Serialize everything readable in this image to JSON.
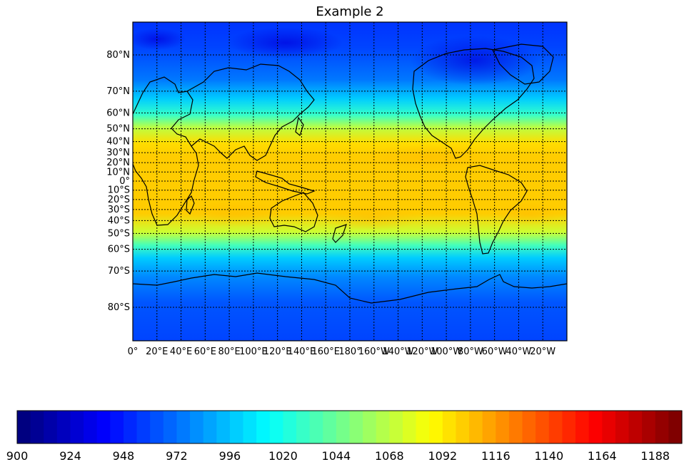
{
  "map": {
    "title": "Example 2",
    "projection": "cylindrical",
    "lat_labels": [
      {
        "lat": 80,
        "label": "80°N"
      },
      {
        "lat": 70,
        "label": "70°N"
      },
      {
        "lat": 60,
        "label": "60°N"
      },
      {
        "lat": 50,
        "label": "50°N"
      },
      {
        "lat": 40,
        "label": "40°N"
      },
      {
        "lat": 30,
        "label": "30°N"
      },
      {
        "lat": 20,
        "label": "20°N"
      },
      {
        "lat": 10,
        "label": "10°N"
      },
      {
        "lat": 0,
        "label": "0°"
      },
      {
        "lat": -10,
        "label": "10°S"
      },
      {
        "lat": -20,
        "label": "20°S"
      },
      {
        "lat": -30,
        "label": "30°S"
      },
      {
        "lat": -40,
        "label": "40°S"
      },
      {
        "lat": -50,
        "label": "50°S"
      },
      {
        "lat": -60,
        "label": "60°S"
      },
      {
        "lat": -70,
        "label": "70°S"
      },
      {
        "lat": -80,
        "label": "80°S"
      }
    ],
    "lon_labels": [
      {
        "lon": 0,
        "label": "0°"
      },
      {
        "lon": 20,
        "label": "20°E"
      },
      {
        "lon": 40,
        "label": "40°E"
      },
      {
        "lon": 60,
        "label": "60°E"
      },
      {
        "lon": 80,
        "label": "80°E"
      },
      {
        "lon": 100,
        "label": "100°E"
      },
      {
        "lon": 120,
        "label": "120°E"
      },
      {
        "lon": 140,
        "label": "140°E"
      },
      {
        "lon": 160,
        "label": "160°E"
      },
      {
        "lon": 180,
        "label": "180°"
      },
      {
        "lon": 200,
        "label": "160°W"
      },
      {
        "lon": 220,
        "label": "140°W"
      },
      {
        "lon": 240,
        "label": "120°W"
      },
      {
        "lon": 260,
        "label": "100°W"
      },
      {
        "lon": 280,
        "label": "80°W"
      },
      {
        "lon": 300,
        "label": "60°W"
      },
      {
        "lon": 320,
        "label": "40°W"
      },
      {
        "lon": 340,
        "label": "20°W"
      }
    ],
    "colorbar": {
      "min": 900,
      "max": 1200,
      "levels": 50,
      "tick_values": [
        900,
        924,
        948,
        972,
        996,
        1020,
        1044,
        1068,
        1092,
        1116,
        1140,
        1164,
        1188
      ],
      "tick_labels": [
        "900",
        "924",
        "948",
        "972",
        "996",
        "1020",
        "1044",
        "1068",
        "1092",
        "1116",
        "1140",
        "1164",
        "1188"
      ]
    },
    "colors": {
      "coast": "#000000",
      "grid": "#000000"
    }
  }
}
